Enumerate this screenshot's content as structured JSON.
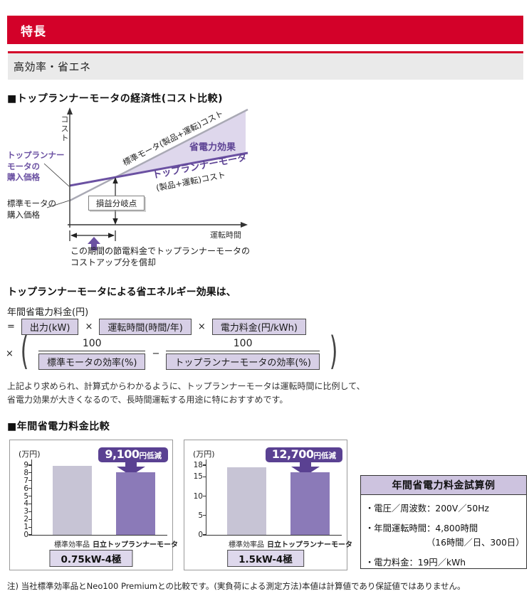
{
  "header": {
    "title": "特長"
  },
  "subheader": {
    "title": "高効率・省エネ"
  },
  "sections": {
    "economy_title": "■トップランナーモータの経済性(コスト比較)",
    "comparison_title": "■年間省電力料金比較"
  },
  "diagram": {
    "y_axis_label": "コスト",
    "x_axis_label": "運転時間",
    "standard_line_label": "標準モータ(製品+運転)コスト",
    "saving_effect_label": "省電力効果",
    "top_runner_line_label": "トップランナーモータ",
    "top_runner_line_sub": "(製品+運転)コスト",
    "top_runner_price_lines": [
      "トップランナー",
      "モータの",
      "購入価格"
    ],
    "standard_price_lines": [
      "標準モータの",
      "購入価格"
    ],
    "break_even_label": "損益分岐点",
    "caption_lines": [
      "この期間の節電料金でトップランナーモータの",
      "コストアップ分を償却"
    ],
    "colors": {
      "standard_line": "#a9a9b4",
      "top_runner_line": "#6b51a2",
      "saving_area": "#ded7ec"
    }
  },
  "formula": {
    "intro": "トップランナーモータによる省エネルギー効果は、",
    "result_label": "年間省電力料金(円)",
    "equals": "=",
    "times": "×",
    "minus": "−",
    "paren_open": "(",
    "paren_close": ")",
    "numerator": "100",
    "box_output": "出力(kW)",
    "box_hours": "運転時間(時間/年)",
    "box_price": "電力料金(円/kWh)",
    "box_std_eff": "標準モータの効率(%)",
    "box_top_eff": "トップランナーモータの効率(%)"
  },
  "paragraph_lines": [
    "上記より求められ、計算式からわかるように、トップランナーモータは運転時間に比例して、",
    "省電力効果が大きくなるので、長時間運転する用途に特におすすめです。"
  ],
  "chart_data": [
    {
      "type": "line",
      "title": "トップランナーモータの経済性(コスト比較)",
      "xlabel": "運転時間",
      "ylabel": "コスト",
      "axes_numeric_labels": false,
      "series": [
        {
          "name": "標準モータ(製品+運転)コスト",
          "x": [
            0,
            10
          ],
          "y": [
            2.0,
            9.5
          ],
          "color": "#a9a9b4"
        },
        {
          "name": "トップランナーモータ(製品+運転)コスト",
          "x": [
            0,
            10
          ],
          "y": [
            3.3,
            5.9
          ],
          "color": "#6b51a2"
        }
      ],
      "annotations": [
        "省電力効果",
        "損益分岐点",
        "トップランナーモータの購入価格",
        "標準モータの購入価格",
        "この期間の節電料金でトップランナーモータのコストアップ分を償却"
      ]
    },
    {
      "type": "bar",
      "unit": "(万円)",
      "categories": [
        "標準効率品",
        "日立トップランナーモータ"
      ],
      "values": [
        8.95,
        8.04
      ],
      "bar_colors": [
        "#c7c4d5",
        "#8b7ab8"
      ],
      "badge_number": "9,100",
      "badge_suffix": "円低減",
      "model": "0.75kW-4極",
      "ticks": [
        0,
        1,
        2,
        3,
        4,
        5,
        6,
        7,
        8,
        9
      ],
      "ymax": 9
    },
    {
      "type": "bar",
      "unit": "(万円)",
      "categories": [
        "標準効率品",
        "日立トップランナーモータ"
      ],
      "values": [
        17.4,
        16.13
      ],
      "bar_colors": [
        "#c7c4d5",
        "#8b7ab8"
      ],
      "badge_number": "12,700",
      "badge_suffix": "円低減",
      "model": "1.5kW-4極",
      "ticks": [
        0,
        5,
        10,
        15,
        18
      ],
      "ymax": 18
    }
  ],
  "estimation_box": {
    "title": "年間省電力料金試算例",
    "lines": [
      "・電圧／周波数：200V／50Hz",
      "・年間運転時間：4,800時間",
      "（16時間／日、300日）",
      "・電力料金：19円／kWh"
    ]
  },
  "footnote": "注) 当社標準効率品とNeo100 Premiumとの比較です。(実負荷による測定方法)本値は計算値であり保証値ではありません。",
  "colors": {
    "brand_red": "#d30129",
    "accent_purple": "#5a4192",
    "light_purple": "#d7cfe6"
  }
}
